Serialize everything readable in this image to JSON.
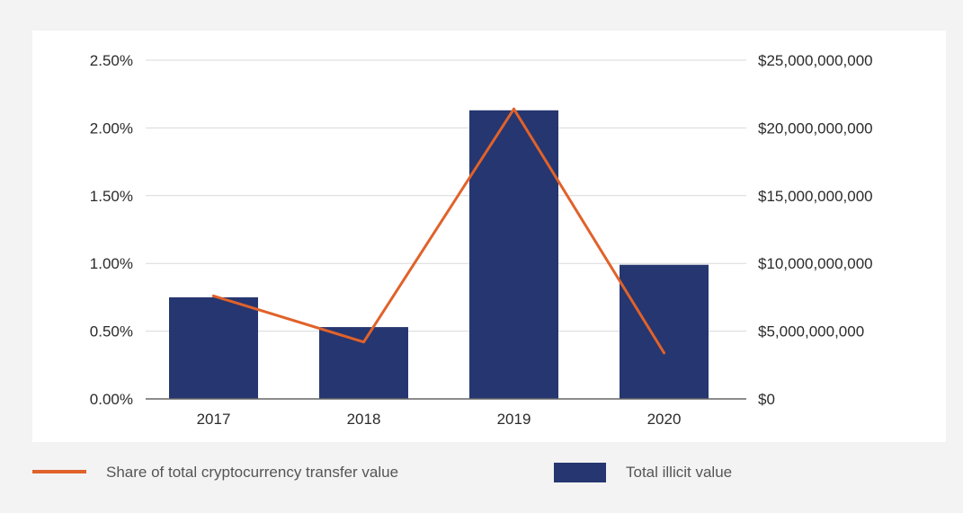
{
  "chart_data": {
    "type": "bar",
    "title": "",
    "xlabel": "",
    "categories": [
      "2017",
      "2018",
      "2019",
      "2020"
    ],
    "series": [
      {
        "name": "Total illicit value",
        "type": "bar",
        "axis": "right",
        "values": [
          7500000000,
          5300000000,
          21300000000,
          9900000000
        ]
      },
      {
        "name": "Share of total cryptocurrency transfer value",
        "type": "line",
        "axis": "left",
        "values": [
          0.0076,
          0.0042,
          0.0214,
          0.0034
        ]
      }
    ],
    "y_left": {
      "ylim": [
        0,
        0.025
      ],
      "ticks": [
        0,
        0.005,
        0.01,
        0.015,
        0.02,
        0.025
      ],
      "tick_labels": [
        "0.00%",
        "0.50%",
        "1.00%",
        "1.50%",
        "2.00%",
        "2.50%"
      ]
    },
    "y_right": {
      "ylim": [
        0,
        25000000000
      ],
      "ticks": [
        0,
        5000000000,
        10000000000,
        15000000000,
        20000000000,
        25000000000
      ],
      "tick_labels": [
        "$0",
        "$5,000,000,000",
        "$10,000,000,000",
        "$15,000,000,000",
        "$20,000,000,000",
        "$25,000,000,000"
      ]
    },
    "grid": true,
    "legend_position": "bottom",
    "colors": {
      "bar": "#263670",
      "line": "#e0622a",
      "grid": "#d9d9d9",
      "axis": "#666666"
    }
  }
}
